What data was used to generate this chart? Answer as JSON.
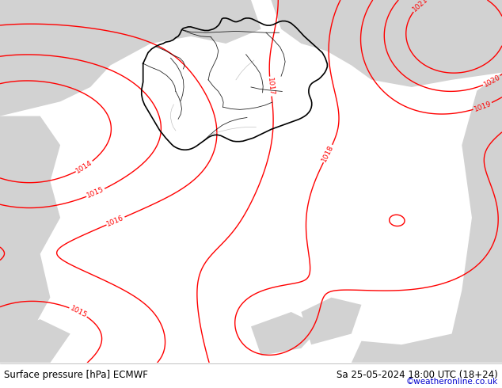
{
  "title_left": "Surface pressure [hPa] ECMWF",
  "title_right": "Sa 25-05-2024 18:00 UTC (18+24)",
  "credit": "©weatheronline.co.uk",
  "bg_color_green": "#b5e8a0",
  "bg_color_gray": "#d2d2d2",
  "contour_color": "#ff0000",
  "border_color_black": "#000000",
  "border_color_gray": "#888888",
  "bottom_bar_color": "#ffffff",
  "bottom_text_color": "#000000",
  "credit_color": "#0000cc",
  "figsize": [
    6.34,
    4.9
  ],
  "dpi": 100,
  "font_size_bottom": 8.5,
  "font_size_credit": 7.5
}
